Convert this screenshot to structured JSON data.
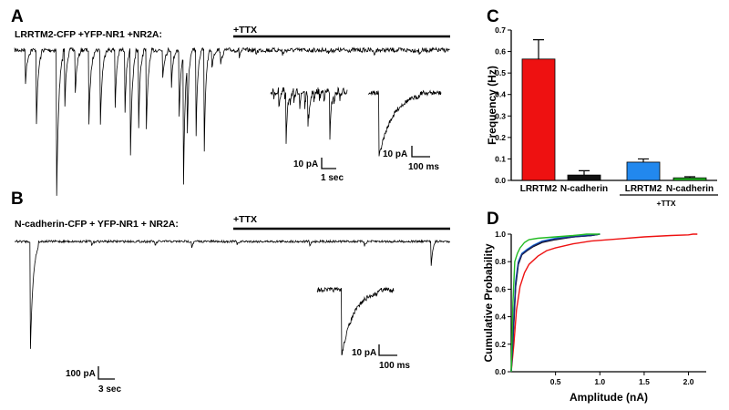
{
  "panel_a": {
    "letter": "A",
    "condition": "LRRTM2-CFP +YFP-NR1 +NR2A:",
    "ttx_label": "+TTX",
    "inset1_scale": {
      "amp": "10 pA",
      "time": "1 sec"
    },
    "inset2_scale": {
      "amp": "10 pA",
      "time": "100 ms"
    }
  },
  "panel_b": {
    "letter": "B",
    "condition": "N-cadherin-CFP + YFP-NR1 + NR2A:",
    "ttx_label": "+TTX",
    "inset_scale": {
      "amp": "10 pA",
      "time": "100 ms"
    },
    "trace_scale": {
      "amp": "100 pA",
      "time": "3 sec"
    }
  },
  "panel_c": {
    "letter": "C"
  },
  "panel_d": {
    "letter": "D"
  },
  "colors": {
    "red": "#ee1111",
    "black": "#111111",
    "blue": "#2288ee",
    "green": "#22bb22",
    "navy": "#1a2a7a"
  },
  "chart_data": [
    {
      "type": "bar",
      "ylabel": "Frequency (Hz)",
      "ylim": [
        0,
        0.7
      ],
      "yticks": [
        "0.0",
        "0.1",
        "0.2",
        "0.3",
        "0.4",
        "0.5",
        "0.6",
        "0.7"
      ],
      "categories": [
        "LRRTM2",
        "N-cadherin",
        "LRRTM2",
        "N-cadherin"
      ],
      "group_label": "+TTX",
      "values": [
        0.565,
        0.025,
        0.085,
        0.012
      ],
      "errors": [
        0.09,
        0.02,
        0.015,
        0.005
      ],
      "bar_colors": [
        "#ee1111",
        "#111111",
        "#2288ee",
        "#22bb22"
      ]
    },
    {
      "type": "line",
      "xlabel": "Amplitude (nA)",
      "ylabel": "Cumulative Probability",
      "xlim": [
        0,
        2.2
      ],
      "ylim": [
        0,
        1.0
      ],
      "xticks": [
        "0.5",
        "1.0",
        "1.5",
        "2.0"
      ],
      "yticks": [
        "0.0",
        "0.2",
        "0.4",
        "0.6",
        "0.8",
        "1.0"
      ],
      "series": [
        {
          "color": "#ee1111",
          "x": [
            0.0,
            0.03,
            0.06,
            0.1,
            0.15,
            0.2,
            0.3,
            0.4,
            0.5,
            0.7,
            0.9,
            1.2,
            1.5,
            1.8,
            2.0,
            2.05,
            2.1
          ],
          "y": [
            0.0,
            0.2,
            0.45,
            0.62,
            0.72,
            0.78,
            0.84,
            0.88,
            0.9,
            0.93,
            0.95,
            0.965,
            0.98,
            0.99,
            0.995,
            1.0,
            1.0
          ]
        },
        {
          "color": "#111111",
          "x": [
            0.0,
            0.03,
            0.05,
            0.08,
            0.12,
            0.18,
            0.25,
            0.35,
            0.5,
            0.7,
            0.9,
            1.0
          ],
          "y": [
            0.0,
            0.35,
            0.62,
            0.78,
            0.85,
            0.88,
            0.91,
            0.94,
            0.96,
            0.98,
            0.99,
            1.0
          ]
        },
        {
          "color": "#2288ee",
          "x": [
            0.0,
            0.03,
            0.05,
            0.08,
            0.12,
            0.18,
            0.25,
            0.35,
            0.5,
            0.7,
            0.9,
            1.0
          ],
          "y": [
            0.0,
            0.4,
            0.66,
            0.8,
            0.86,
            0.89,
            0.92,
            0.95,
            0.97,
            0.985,
            0.995,
            1.0
          ]
        },
        {
          "color": "#1a2a7a",
          "x": [
            0.0,
            0.03,
            0.05,
            0.08,
            0.12,
            0.18,
            0.25,
            0.35,
            0.5,
            0.7,
            0.9,
            1.0
          ],
          "y": [
            0.0,
            0.38,
            0.64,
            0.79,
            0.855,
            0.885,
            0.915,
            0.945,
            0.965,
            0.98,
            0.99,
            1.0
          ]
        },
        {
          "color": "#22bb22",
          "x": [
            0.0,
            0.02,
            0.04,
            0.07,
            0.1,
            0.15,
            0.2,
            0.3,
            0.5,
            0.7,
            0.85,
            1.0
          ],
          "y": [
            0.0,
            0.5,
            0.8,
            0.86,
            0.9,
            0.94,
            0.96,
            0.97,
            0.98,
            0.99,
            1.0,
            1.0
          ]
        }
      ]
    }
  ]
}
